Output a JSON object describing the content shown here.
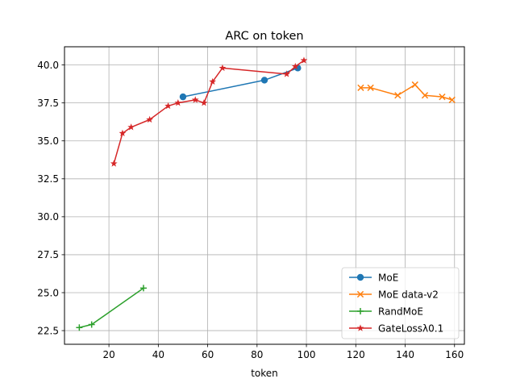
{
  "chart_data": {
    "type": "line",
    "title": "ARC on token",
    "xlabel": "token",
    "ylabel": "",
    "xlim": [
      2,
      164
    ],
    "ylim": [
      21.6,
      41.2
    ],
    "xticks": [
      20,
      40,
      60,
      80,
      100,
      120,
      140,
      160
    ],
    "xtick_labels": [
      "20",
      "40",
      "60",
      "80",
      "100",
      "120",
      "140",
      "160"
    ],
    "yticks": [
      22.5,
      25.0,
      27.5,
      30.0,
      32.5,
      35.0,
      37.5,
      40.0
    ],
    "ytick_labels": [
      "22.5",
      "25.0",
      "27.5",
      "30.0",
      "32.5",
      "35.0",
      "37.5",
      "40.0"
    ],
    "grid": true,
    "legend_position": "lower-right",
    "series": [
      {
        "name": "MoE",
        "color": "#1f77b4",
        "marker": "circle",
        "x": [
          50,
          83,
          96.5
        ],
        "y": [
          37.9,
          39.0,
          39.8
        ]
      },
      {
        "name": "MoE data-v2",
        "color": "#ff7f0e",
        "marker": "x",
        "x": [
          122,
          126,
          137,
          144,
          148,
          155,
          159
        ],
        "y": [
          38.5,
          38.5,
          38.0,
          38.7,
          38.0,
          37.9,
          37.7
        ]
      },
      {
        "name": "RandMoE",
        "color": "#2ca02c",
        "marker": "plus",
        "x": [
          8,
          13,
          34
        ],
        "y": [
          22.7,
          22.9,
          25.3
        ]
      },
      {
        "name": "GateLossλ0.1",
        "color": "#d62728",
        "marker": "star",
        "x": [
          22,
          25.5,
          29,
          36.5,
          44,
          48,
          55,
          58.5,
          62,
          66,
          92,
          95.5,
          99
        ],
        "y": [
          33.5,
          35.5,
          35.9,
          36.4,
          37.3,
          37.5,
          37.7,
          37.5,
          38.9,
          39.8,
          39.4,
          39.9,
          40.3
        ]
      }
    ]
  }
}
